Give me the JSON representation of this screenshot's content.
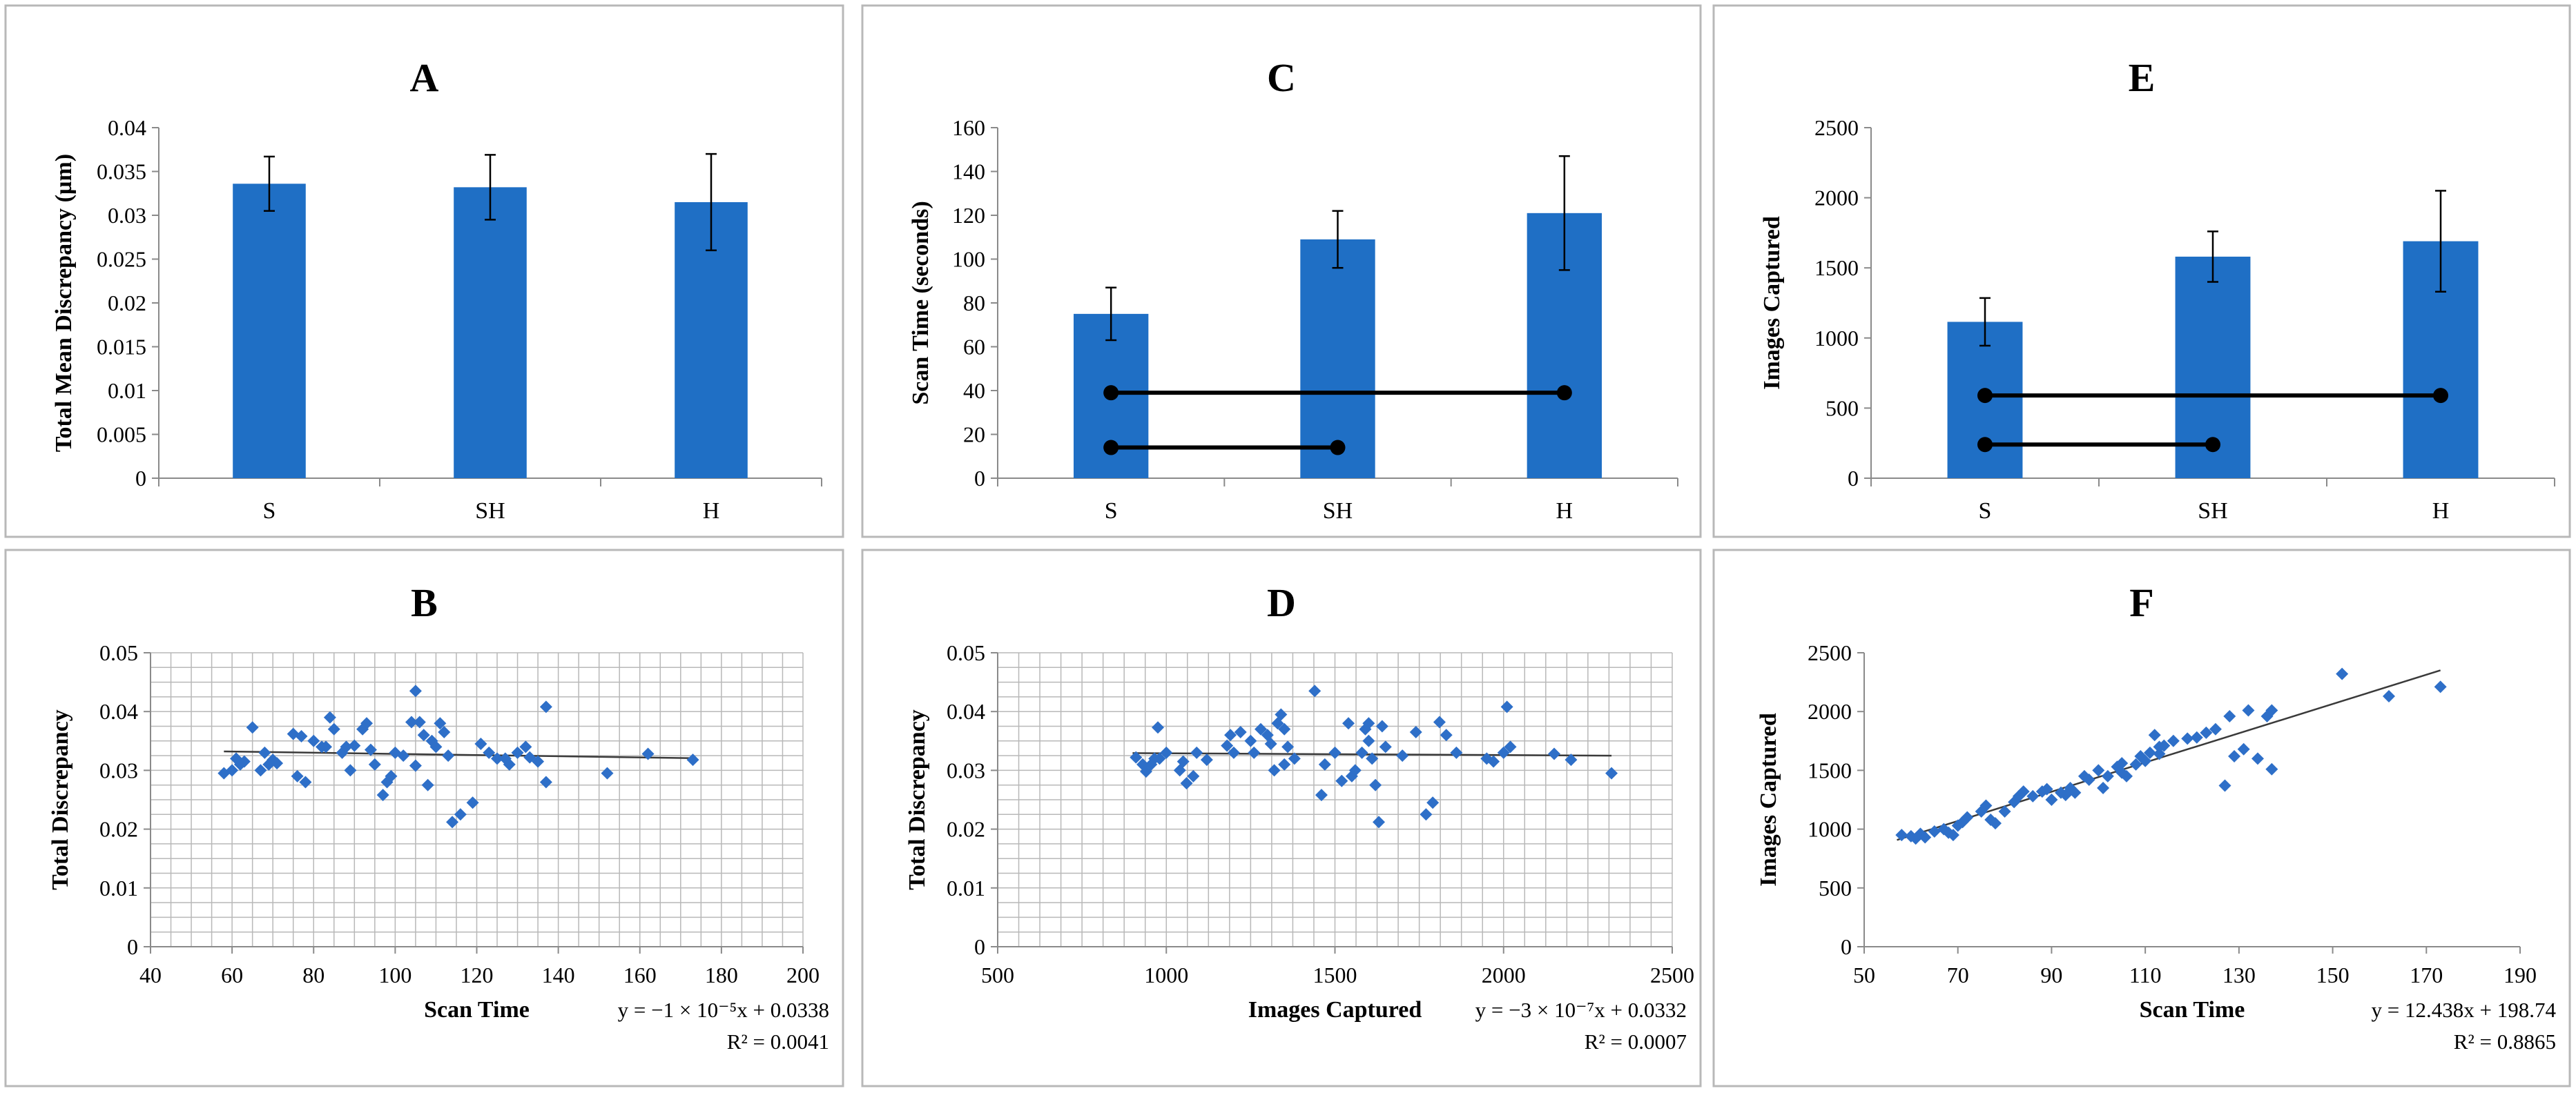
{
  "colors": {
    "bar": "#1F6FC5",
    "point": "#2E6FC8",
    "frame": "#B8B8B8",
    "grid": "#B8B8B8",
    "axis": "#8A8A8A",
    "text": "#000000",
    "line": "#000000"
  },
  "chart_data": [
    {
      "id": "A",
      "type": "bar",
      "title": "A",
      "categories": [
        "S",
        "SH",
        "H"
      ],
      "values": [
        0.0336,
        0.0332,
        0.0315
      ],
      "errors": [
        0.0031,
        0.0037,
        0.0055
      ],
      "ylabel": "Total Mean Discrepancy (µm)",
      "xlabel": "",
      "ylim": [
        0,
        0.04
      ],
      "yticks": [
        0,
        0.005,
        0.01,
        0.015,
        0.02,
        0.025,
        0.03,
        0.035,
        0.04
      ],
      "ytick_labels": [
        "0",
        "0.005",
        "0.01",
        "0.015",
        "0.02",
        "0.025",
        "0.03",
        "0.035",
        "0.04"
      ],
      "grid": false
    },
    {
      "id": "C",
      "type": "bar",
      "title": "C",
      "categories": [
        "S",
        "SH",
        "H"
      ],
      "values": [
        75,
        109,
        121
      ],
      "errors": [
        12,
        13,
        26
      ],
      "ylabel": "Scan Time (seconds)",
      "xlabel": "",
      "ylim": [
        0,
        160
      ],
      "yticks": [
        0,
        20,
        40,
        60,
        80,
        100,
        120,
        140,
        160
      ],
      "ytick_labels": [
        "0",
        "20",
        "40",
        "60",
        "80",
        "100",
        "120",
        "140",
        "160"
      ],
      "grid": false,
      "comparisons": [
        {
          "from": "S",
          "to": "H",
          "y": 39
        },
        {
          "from": "S",
          "to": "SH",
          "y": 14
        }
      ]
    },
    {
      "id": "E",
      "type": "bar",
      "title": "E",
      "categories": [
        "S",
        "SH",
        "H"
      ],
      "values": [
        1115,
        1580,
        1690
      ],
      "errors": [
        170,
        180,
        360
      ],
      "ylabel": "Images Captured",
      "xlabel": "",
      "ylim": [
        0,
        2500
      ],
      "yticks": [
        0,
        500,
        1000,
        1500,
        2000,
        2500
      ],
      "ytick_labels": [
        "0",
        "500",
        "1000",
        "1500",
        "2000",
        "2500"
      ],
      "grid": false,
      "comparisons": [
        {
          "from": "S",
          "to": "H",
          "y": 590
        },
        {
          "from": "S",
          "to": "SH",
          "y": 240
        }
      ]
    },
    {
      "id": "B",
      "type": "scatter",
      "title": "B",
      "xlabel": "Scan Time",
      "ylabel": "Total Discrepancy",
      "xlim": [
        40,
        200
      ],
      "ylim": [
        0,
        0.05
      ],
      "xticks": [
        40,
        60,
        80,
        100,
        120,
        140,
        160,
        180,
        200
      ],
      "xtick_labels": [
        "40",
        "60",
        "80",
        "100",
        "120",
        "140",
        "160",
        "180",
        "200"
      ],
      "yticks": [
        0,
        0.01,
        0.02,
        0.03,
        0.04,
        0.05
      ],
      "ytick_labels": [
        "0",
        "0.01",
        "0.02",
        "0.03",
        "0.04",
        "0.05"
      ],
      "grid": true,
      "grid_minor_x": 5,
      "grid_minor_y": 0.0025,
      "trendline": {
        "slope": -1e-05,
        "intercept": 0.0338,
        "x_range": [
          58,
          173
        ]
      },
      "equation_line1": "y = −1 × 10⁻⁵x + 0.0338",
      "equation_line2": "R² = 0.0041",
      "points": [
        [
          58,
          0.0295
        ],
        [
          60,
          0.03
        ],
        [
          61,
          0.032
        ],
        [
          62,
          0.031
        ],
        [
          63,
          0.0315
        ],
        [
          65,
          0.0373
        ],
        [
          67,
          0.03
        ],
        [
          68,
          0.033
        ],
        [
          69,
          0.031
        ],
        [
          70,
          0.0318
        ],
        [
          71,
          0.0312
        ],
        [
          75,
          0.0362
        ],
        [
          76,
          0.029
        ],
        [
          77,
          0.0358
        ],
        [
          78,
          0.028
        ],
        [
          80,
          0.035
        ],
        [
          82,
          0.034
        ],
        [
          83,
          0.034
        ],
        [
          84,
          0.039
        ],
        [
          85,
          0.037
        ],
        [
          87,
          0.033
        ],
        [
          88,
          0.034
        ],
        [
          89,
          0.03
        ],
        [
          90,
          0.0342
        ],
        [
          92,
          0.037
        ],
        [
          93,
          0.038
        ],
        [
          94,
          0.0335
        ],
        [
          95,
          0.031
        ],
        [
          97,
          0.0258
        ],
        [
          98,
          0.028
        ],
        [
          99,
          0.029
        ],
        [
          100,
          0.033
        ],
        [
          102,
          0.0325
        ],
        [
          104,
          0.0382
        ],
        [
          105,
          0.0435
        ],
        [
          105,
          0.0308
        ],
        [
          106,
          0.0382
        ],
        [
          107,
          0.036
        ],
        [
          108,
          0.0275
        ],
        [
          109,
          0.035
        ],
        [
          110,
          0.034
        ],
        [
          111,
          0.038
        ],
        [
          112,
          0.0365
        ],
        [
          113,
          0.0325
        ],
        [
          114,
          0.0212
        ],
        [
          116,
          0.0225
        ],
        [
          119,
          0.0245
        ],
        [
          121,
          0.0345
        ],
        [
          123,
          0.033
        ],
        [
          125,
          0.032
        ],
        [
          127,
          0.032
        ],
        [
          128,
          0.031
        ],
        [
          130,
          0.033
        ],
        [
          132,
          0.034
        ],
        [
          133,
          0.0322
        ],
        [
          135,
          0.0315
        ],
        [
          137,
          0.0408
        ],
        [
          137,
          0.028
        ],
        [
          152,
          0.0295
        ],
        [
          162,
          0.0328
        ],
        [
          173,
          0.0318
        ]
      ]
    },
    {
      "id": "D",
      "type": "scatter",
      "title": "D",
      "xlabel": "Images Captured",
      "ylabel": "Total Discrepancy",
      "xlim": [
        500,
        2500
      ],
      "ylim": [
        0,
        0.05
      ],
      "xticks": [
        500,
        1000,
        1500,
        2000,
        2500
      ],
      "xtick_labels": [
        "500",
        "1000",
        "1500",
        "2000",
        "2500"
      ],
      "yticks": [
        0,
        0.01,
        0.02,
        0.03,
        0.04,
        0.05
      ],
      "ytick_labels": [
        "0",
        "0.01",
        "0.02",
        "0.03",
        "0.04",
        "0.05"
      ],
      "grid": true,
      "grid_minor_x": 62.5,
      "grid_minor_y": 0.0025,
      "trendline": {
        "slope": -3e-07,
        "intercept": 0.0332,
        "x_range": [
          900,
          2320
        ]
      },
      "equation_line1": "y = −3 × 10⁻⁷x + 0.0332",
      "equation_line2": "R² = 0.0007",
      "points": [
        [
          910,
          0.0322
        ],
        [
          930,
          0.031
        ],
        [
          940,
          0.0298
        ],
        [
          955,
          0.031
        ],
        [
          965,
          0.032
        ],
        [
          975,
          0.0373
        ],
        [
          980,
          0.032
        ],
        [
          1000,
          0.033
        ],
        [
          1040,
          0.03
        ],
        [
          1050,
          0.0315
        ],
        [
          1060,
          0.0278
        ],
        [
          1080,
          0.029
        ],
        [
          1090,
          0.033
        ],
        [
          1120,
          0.0318
        ],
        [
          1180,
          0.0342
        ],
        [
          1190,
          0.036
        ],
        [
          1200,
          0.033
        ],
        [
          1220,
          0.0365
        ],
        [
          1250,
          0.035
        ],
        [
          1260,
          0.033
        ],
        [
          1280,
          0.037
        ],
        [
          1300,
          0.036
        ],
        [
          1310,
          0.0345
        ],
        [
          1320,
          0.03
        ],
        [
          1330,
          0.038
        ],
        [
          1340,
          0.0395
        ],
        [
          1350,
          0.037
        ],
        [
          1350,
          0.031
        ],
        [
          1360,
          0.034
        ],
        [
          1380,
          0.032
        ],
        [
          1440,
          0.0435
        ],
        [
          1460,
          0.0258
        ],
        [
          1470,
          0.031
        ],
        [
          1500,
          0.033
        ],
        [
          1520,
          0.0282
        ],
        [
          1540,
          0.038
        ],
        [
          1550,
          0.029
        ],
        [
          1560,
          0.03
        ],
        [
          1580,
          0.033
        ],
        [
          1590,
          0.037
        ],
        [
          1600,
          0.038
        ],
        [
          1600,
          0.035
        ],
        [
          1610,
          0.032
        ],
        [
          1620,
          0.0275
        ],
        [
          1630,
          0.0212
        ],
        [
          1640,
          0.0375
        ],
        [
          1650,
          0.034
        ],
        [
          1700,
          0.0325
        ],
        [
          1740,
          0.0365
        ],
        [
          1770,
          0.0225
        ],
        [
          1790,
          0.0245
        ],
        [
          1810,
          0.0382
        ],
        [
          1830,
          0.036
        ],
        [
          1860,
          0.033
        ],
        [
          1950,
          0.032
        ],
        [
          1970,
          0.0315
        ],
        [
          2000,
          0.033
        ],
        [
          2010,
          0.0408
        ],
        [
          2020,
          0.034
        ],
        [
          2150,
          0.0328
        ],
        [
          2200,
          0.0318
        ],
        [
          2320,
          0.0295
        ]
      ]
    },
    {
      "id": "F",
      "type": "scatter",
      "title": "F",
      "xlabel": "Scan Time",
      "ylabel": "Images Captured",
      "xlim": [
        50,
        190
      ],
      "ylim": [
        0,
        2500
      ],
      "xticks": [
        50,
        70,
        90,
        110,
        130,
        150,
        170,
        190
      ],
      "xtick_labels": [
        "50",
        "70",
        "90",
        "110",
        "130",
        "150",
        "170",
        "190"
      ],
      "yticks": [
        0,
        500,
        1000,
        1500,
        2000,
        2500
      ],
      "ytick_labels": [
        "0",
        "500",
        "1000",
        "1500",
        "2000",
        "2500"
      ],
      "grid": false,
      "trendline": {
        "slope": 12.438,
        "intercept": 198.74,
        "x_range": [
          57,
          173
        ]
      },
      "equation_line1": "y = 12.438x + 198.74",
      "equation_line2": "R² = 0.8865",
      "points": [
        [
          58,
          950
        ],
        [
          60,
          940
        ],
        [
          61,
          920
        ],
        [
          62,
          960
        ],
        [
          63,
          930
        ],
        [
          65,
          980
        ],
        [
          67,
          1000
        ],
        [
          68,
          970
        ],
        [
          69,
          950
        ],
        [
          70,
          1030
        ],
        [
          71,
          1060
        ],
        [
          72,
          1100
        ],
        [
          75,
          1150
        ],
        [
          76,
          1200
        ],
        [
          77,
          1080
        ],
        [
          78,
          1050
        ],
        [
          80,
          1150
        ],
        [
          82,
          1230
        ],
        [
          83,
          1280
        ],
        [
          84,
          1320
        ],
        [
          86,
          1280
        ],
        [
          88,
          1320
        ],
        [
          89,
          1340
        ],
        [
          90,
          1250
        ],
        [
          92,
          1310
        ],
        [
          93,
          1290
        ],
        [
          94,
          1350
        ],
        [
          95,
          1310
        ],
        [
          97,
          1450
        ],
        [
          98,
          1420
        ],
        [
          100,
          1500
        ],
        [
          101,
          1350
        ],
        [
          102,
          1450
        ],
        [
          104,
          1530
        ],
        [
          105,
          1560
        ],
        [
          105,
          1480
        ],
        [
          106,
          1450
        ],
        [
          108,
          1550
        ],
        [
          109,
          1620
        ],
        [
          110,
          1580
        ],
        [
          111,
          1650
        ],
        [
          112,
          1800
        ],
        [
          113,
          1700
        ],
        [
          113,
          1640
        ],
        [
          114,
          1710
        ],
        [
          116,
          1750
        ],
        [
          119,
          1770
        ],
        [
          121,
          1780
        ],
        [
          123,
          1820
        ],
        [
          125,
          1850
        ],
        [
          127,
          1370
        ],
        [
          128,
          1960
        ],
        [
          129,
          1620
        ],
        [
          131,
          1680
        ],
        [
          132,
          2010
        ],
        [
          134,
          1600
        ],
        [
          136,
          1960
        ],
        [
          137,
          2010
        ],
        [
          137,
          1510
        ],
        [
          152,
          2320
        ],
        [
          162,
          2130
        ],
        [
          173,
          2210
        ]
      ]
    }
  ]
}
